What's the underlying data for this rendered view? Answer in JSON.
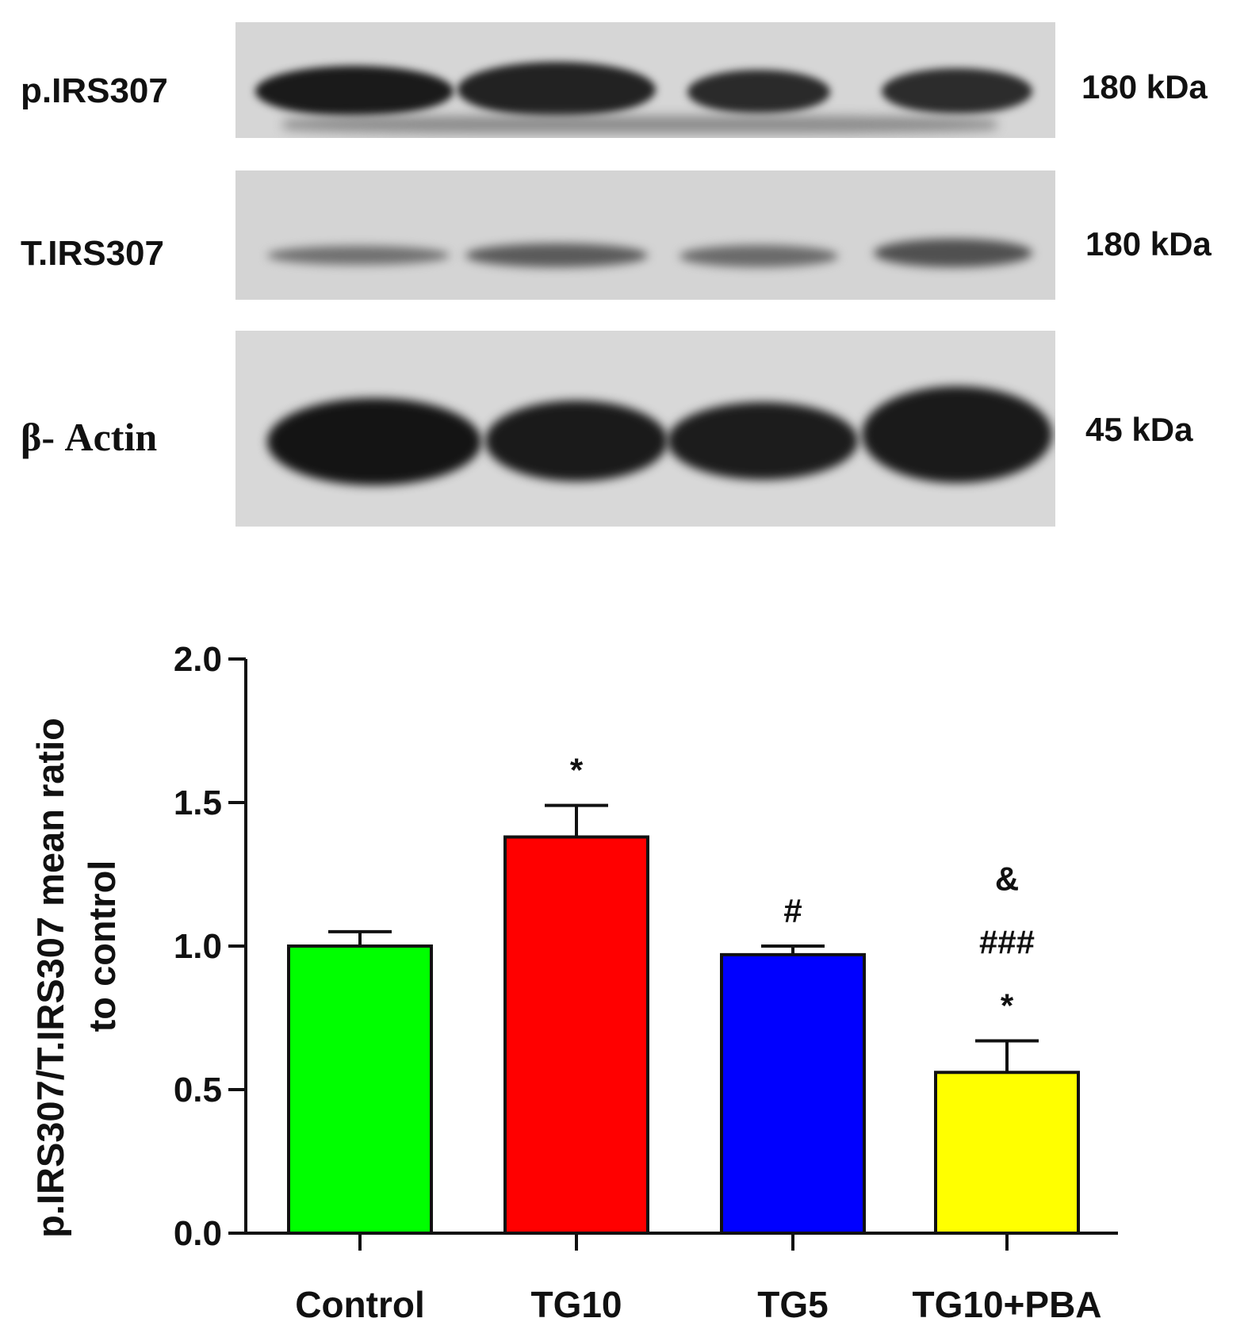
{
  "blot": {
    "rows": [
      {
        "label": "p.IRS307",
        "kda": "180 kDa"
      },
      {
        "label": "T.IRS307",
        "kda": "180 kDa"
      },
      {
        "label": "β- Actin",
        "kda": "45 kDa"
      }
    ]
  },
  "chart_data": {
    "type": "bar",
    "categories": [
      "Control",
      "TG10",
      "TG5",
      "TG10+PBA"
    ],
    "values": [
      1.0,
      1.38,
      0.97,
      0.56
    ],
    "errors": [
      0.05,
      0.11,
      0.03,
      0.11
    ],
    "colors": [
      "#00ff00",
      "#ff0000",
      "#0000ff",
      "#ffff00"
    ],
    "annotations": [
      [],
      [
        "*"
      ],
      [
        "#"
      ],
      [
        "&",
        "###",
        "*"
      ]
    ],
    "ylabel": "p.IRS307/T.IRS307 mean ratio to control",
    "yticks": [
      "0.0",
      "0.5",
      "1.0",
      "1.5",
      "2.0"
    ],
    "ylim": [
      0,
      2.0
    ],
    "grid": false
  }
}
